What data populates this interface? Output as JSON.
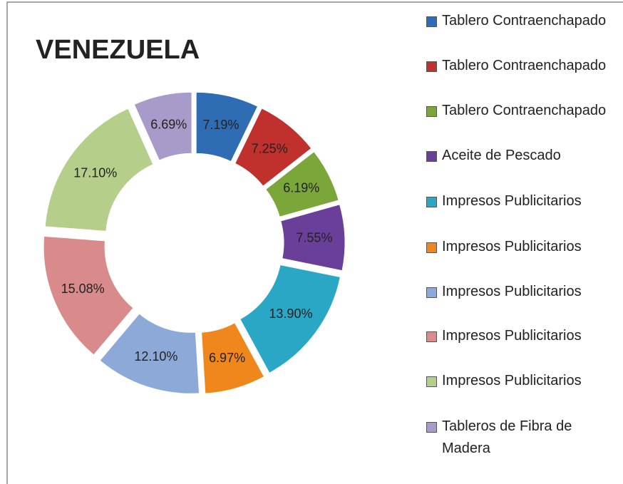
{
  "chart_data": {
    "type": "doughnut",
    "title": "VENEZUELA",
    "categories": [
      "Tablero Contraenchapado",
      "Tablero Contraenchapado",
      "Tablero Contraenchapado",
      "Aceite de Pescado",
      "Impresos Publicitarios",
      "Impresos Publicitarios",
      "Impresos Publicitarios",
      "Impresos Publicitarios",
      "Impresos Publicitarios",
      "Tableros de Fibra de Madera"
    ],
    "values": [
      7.19,
      7.25,
      6.19,
      7.55,
      13.9,
      6.97,
      12.1,
      15.08,
      17.1,
      6.69
    ],
    "value_labels": [
      "7.19%",
      "7.25%",
      "6.19%",
      "7.55%",
      "13.90%",
      "6.97%",
      "12.10%",
      "15.08%",
      "17.10%",
      "6.69%"
    ],
    "colors": [
      "#2e6db4",
      "#c0302d",
      "#7aa63a",
      "#6a3f9a",
      "#2aa7c4",
      "#f0871c",
      "#8ca9d8",
      "#d98a8a",
      "#b5cf8a",
      "#a99bc9"
    ],
    "legend": "right"
  }
}
